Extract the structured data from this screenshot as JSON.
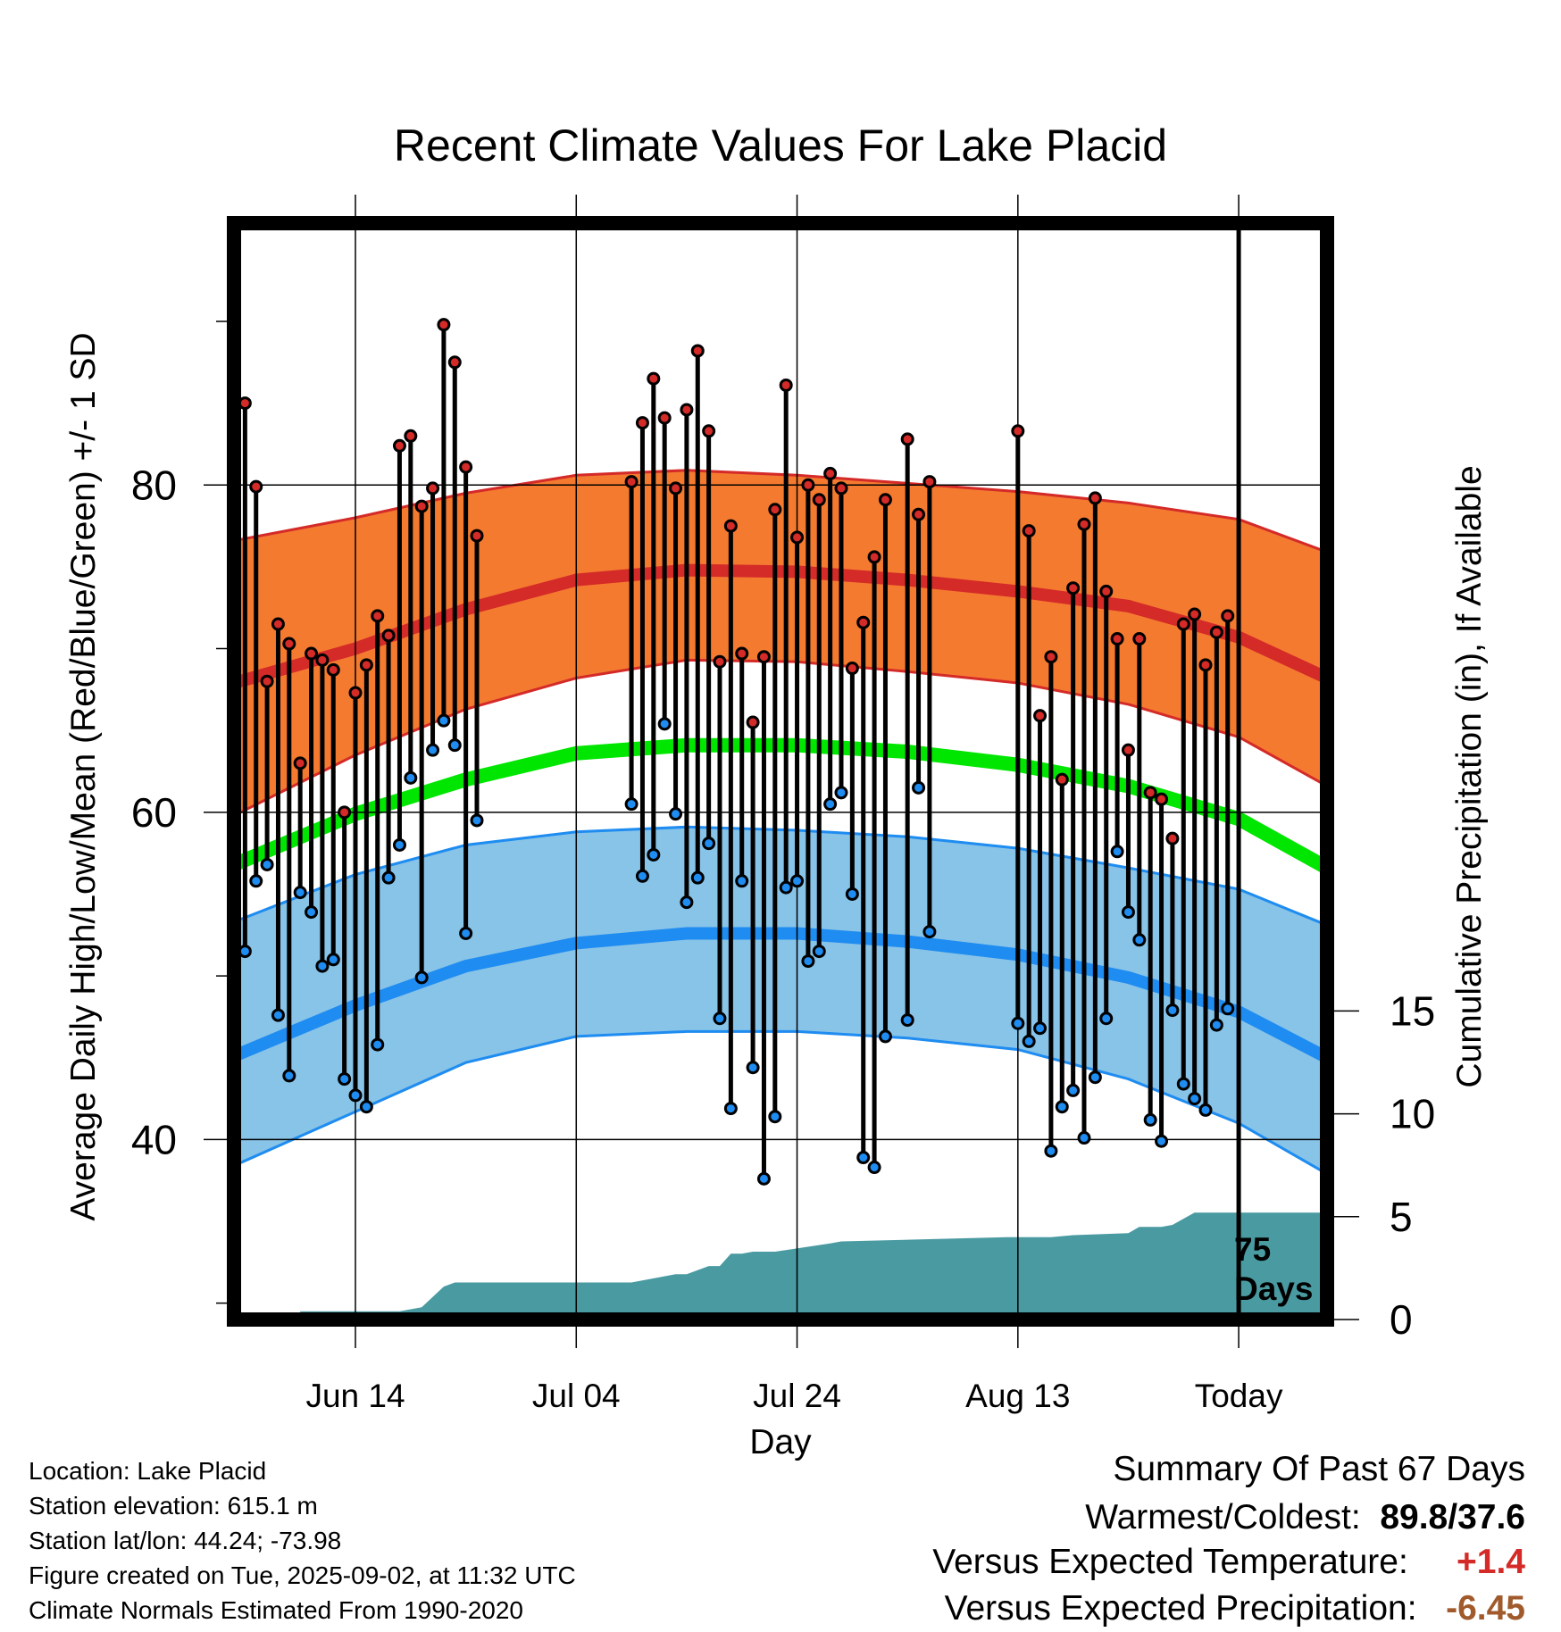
{
  "chart_data": {
    "type": "line",
    "title": "Recent Climate Values For Lake Placid",
    "xlabel": "Day",
    "ylabel": "Average Daily High/Low/Mean (Red/Blue/Green) +/- 1 SD",
    "y2label": "Cumulative Precipitation (in), If Available",
    "ylim": [
      29,
      96
    ],
    "y2lim": [
      0,
      53.3
    ],
    "yticks": [
      40,
      60,
      80
    ],
    "y2ticks": [
      0,
      5,
      10,
      15
    ],
    "xlim": [
      -11,
      88
    ],
    "xticks": [
      {
        "day": 0,
        "label": "Jun 14"
      },
      {
        "day": 20,
        "label": "Jul 04"
      },
      {
        "day": 40,
        "label": "Jul 24"
      },
      {
        "day": 60,
        "label": "Aug 13"
      },
      {
        "day": 80,
        "label": "Today"
      }
    ],
    "today_label": "75 Days",
    "colors": {
      "high_band": "#f47a30",
      "high_mean": "#d42a28",
      "low_band": "#88c3e8",
      "low_mean": "#1e8cf0",
      "mean": "#00e600",
      "precip": "#4a9aa2",
      "high_dot": "#d42a28",
      "low_dot": "#1e8cf0"
    },
    "normals": {
      "days": [
        -11,
        0,
        10,
        20,
        30,
        40,
        50,
        60,
        70,
        80,
        88
      ],
      "high_mean": [
        67.9,
        70.0,
        72.4,
        74.2,
        74.8,
        74.7,
        74.2,
        73.5,
        72.6,
        70.7,
        68.2
      ],
      "high_upper": [
        76.6,
        78.0,
        79.5,
        80.6,
        80.9,
        80.6,
        80.1,
        79.6,
        78.9,
        77.9,
        75.9
      ],
      "high_lower": [
        59.8,
        63.5,
        66.3,
        68.2,
        69.3,
        69.2,
        68.6,
        67.9,
        66.6,
        64.6,
        61.6
      ],
      "mean": [
        56.8,
        59.9,
        62.0,
        63.6,
        64.1,
        64.1,
        63.7,
        62.9,
        61.6,
        59.6,
        56.6
      ],
      "low_mean": [
        45.1,
        48.2,
        50.6,
        52.0,
        52.6,
        52.6,
        52.1,
        51.3,
        49.9,
        47.8,
        45.0
      ],
      "low_upper": [
        53.3,
        56.2,
        58.0,
        58.8,
        59.1,
        58.9,
        58.5,
        57.8,
        56.6,
        55.3,
        53.1
      ],
      "low_lower": [
        38.4,
        41.7,
        44.7,
        46.3,
        46.6,
        46.6,
        46.2,
        45.5,
        43.7,
        41.0,
        37.9
      ]
    },
    "observations": {
      "days": [
        -10,
        -9,
        -8,
        -7,
        -6,
        -5,
        -4,
        -3,
        -2,
        -1,
        0,
        1,
        2,
        3,
        4,
        5,
        6,
        7,
        8,
        9,
        10,
        11,
        25,
        26,
        27,
        28,
        29,
        30,
        31,
        32,
        33,
        34,
        35,
        36,
        37,
        38,
        39,
        40,
        41,
        42,
        43,
        44,
        45,
        46,
        47,
        48,
        50,
        51,
        52,
        60,
        61,
        62,
        63,
        64,
        65,
        66,
        67,
        68,
        69,
        70,
        71,
        72,
        73,
        74,
        75,
        76,
        77,
        78,
        79
      ],
      "high": [
        85.0,
        79.9,
        68.0,
        71.5,
        70.3,
        63.0,
        69.7,
        69.3,
        68.7,
        60.0,
        67.3,
        69.0,
        72.0,
        70.8,
        82.4,
        83.0,
        78.7,
        79.8,
        89.8,
        87.5,
        81.1,
        76.9,
        80.2,
        83.8,
        86.5,
        84.1,
        79.8,
        84.6,
        88.2,
        83.3,
        69.2,
        77.5,
        69.7,
        65.5,
        69.5,
        78.5,
        86.1,
        76.8,
        80.0,
        79.1,
        80.7,
        79.8,
        68.8,
        71.6,
        75.6,
        79.1,
        82.8,
        78.2,
        80.2,
        83.3,
        77.2,
        65.9,
        69.5,
        62.0,
        73.7,
        77.6,
        79.2,
        73.5,
        70.6,
        63.8,
        70.6,
        61.2,
        60.8,
        58.4,
        71.5,
        72.1,
        69.0,
        71.0,
        72.0
      ],
      "low": [
        51.5,
        55.8,
        56.8,
        47.6,
        43.9,
        55.1,
        53.9,
        50.6,
        51.0,
        43.7,
        42.7,
        42.0,
        45.8,
        56.0,
        58.0,
        62.1,
        49.9,
        63.8,
        65.6,
        64.1,
        52.6,
        59.5,
        60.5,
        56.1,
        57.4,
        65.4,
        59.9,
        54.5,
        56.0,
        58.1,
        47.4,
        41.9,
        55.8,
        44.4,
        37.6,
        41.4,
        55.4,
        55.8,
        50.9,
        51.5,
        60.5,
        61.2,
        55.0,
        38.9,
        38.3,
        46.3,
        47.3,
        61.5,
        52.7,
        47.1,
        46.0,
        46.8,
        39.3,
        42.0,
        43.0,
        40.1,
        43.8,
        47.4,
        57.6,
        53.9,
        52.2,
        41.2,
        39.9,
        47.9,
        43.4,
        42.5,
        41.8,
        47.0,
        48.0
      ]
    },
    "precipitation": {
      "days": [
        -10,
        -5,
        -5,
        4,
        4,
        6,
        7,
        8,
        9,
        10,
        25,
        27,
        29,
        30,
        32,
        33,
        34,
        35,
        36,
        38,
        43,
        44,
        59,
        63,
        65,
        70,
        71,
        73,
        74,
        76,
        88
      ],
      "cumulative": [
        0.0,
        0.0,
        0.4,
        0.4,
        0.4,
        0.6,
        1.1,
        1.6,
        1.8,
        1.8,
        1.8,
        2.0,
        2.2,
        2.2,
        2.6,
        2.6,
        3.2,
        3.2,
        3.3,
        3.3,
        3.7,
        3.8,
        4.0,
        4.0,
        4.1,
        4.2,
        4.5,
        4.5,
        4.6,
        5.2,
        5.2
      ]
    }
  },
  "legend_text": {
    "location": "Location: Lake Placid",
    "elevation": "Station elevation: 615.1 m",
    "latlon": "Station lat/lon: 44.24; -73.98",
    "created": "Figure created on Tue, 2025-09-02, at 11:32 UTC",
    "normals_note": "Climate Normals Estimated From 1990-2020"
  },
  "summary": {
    "heading": "Summary Of Past 67 Days",
    "warm_cold_label": "Warmest/Coldest:",
    "warm_cold_value": "89.8/37.6",
    "temp_label": "Versus Expected Temperature:",
    "temp_value": "+1.4",
    "temp_color": "#d42a28",
    "precip_label": "Versus Expected Precipitation:",
    "precip_value": "-6.45",
    "precip_color": "#a05a2c"
  }
}
